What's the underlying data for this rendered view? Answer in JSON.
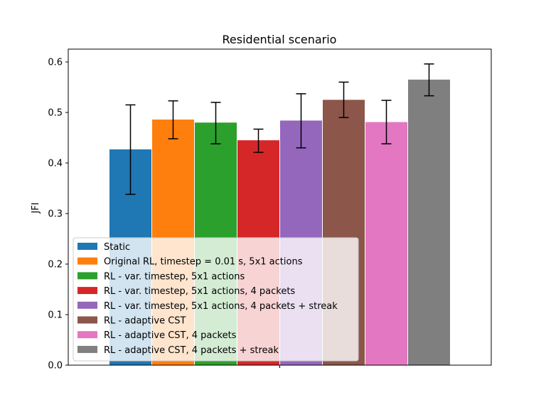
{
  "chart_data": {
    "type": "bar",
    "title": "Residential scenario",
    "xlabel": "",
    "ylabel": "JFI",
    "ylim": [
      0,
      0.625
    ],
    "yticks": [
      0.0,
      0.1,
      0.2,
      0.3,
      0.4,
      0.5,
      0.6
    ],
    "ytick_labels": [
      "0.0",
      "0.1",
      "0.2",
      "0.3",
      "0.4",
      "0.5",
      "0.6"
    ],
    "grid": false,
    "legend_position": "lower-left",
    "series": [
      {
        "name": "Static",
        "value": 0.427,
        "err_low": 0.338,
        "err_high": 0.515,
        "color": "#1f77b4"
      },
      {
        "name": "Original RL, timestep = 0.01 s, 5x1 actions",
        "value": 0.486,
        "err_low": 0.448,
        "err_high": 0.523,
        "color": "#ff7f0e"
      },
      {
        "name": "RL - var. timestep, 5x1 actions",
        "value": 0.48,
        "err_low": 0.438,
        "err_high": 0.52,
        "color": "#2ca02c"
      },
      {
        "name": "RL - var. timestep, 5x1 actions, 4 packets",
        "value": 0.445,
        "err_low": 0.421,
        "err_high": 0.467,
        "color": "#d62728"
      },
      {
        "name": "RL - var. timestep, 5x1 actions, 4 packets + streak",
        "value": 0.484,
        "err_low": 0.43,
        "err_high": 0.537,
        "color": "#9467bd"
      },
      {
        "name": "RL - adaptive CST",
        "value": 0.525,
        "err_low": 0.49,
        "err_high": 0.56,
        "color": "#8c564b"
      },
      {
        "name": "RL - adaptive CST, 4 packets",
        "value": 0.481,
        "err_low": 0.438,
        "err_high": 0.524,
        "color": "#e377c2"
      },
      {
        "name": "RL - adaptive CST, 4 packets + streak",
        "value": 0.565,
        "err_low": 0.533,
        "err_high": 0.596,
        "color": "#7f7f7f"
      }
    ]
  }
}
